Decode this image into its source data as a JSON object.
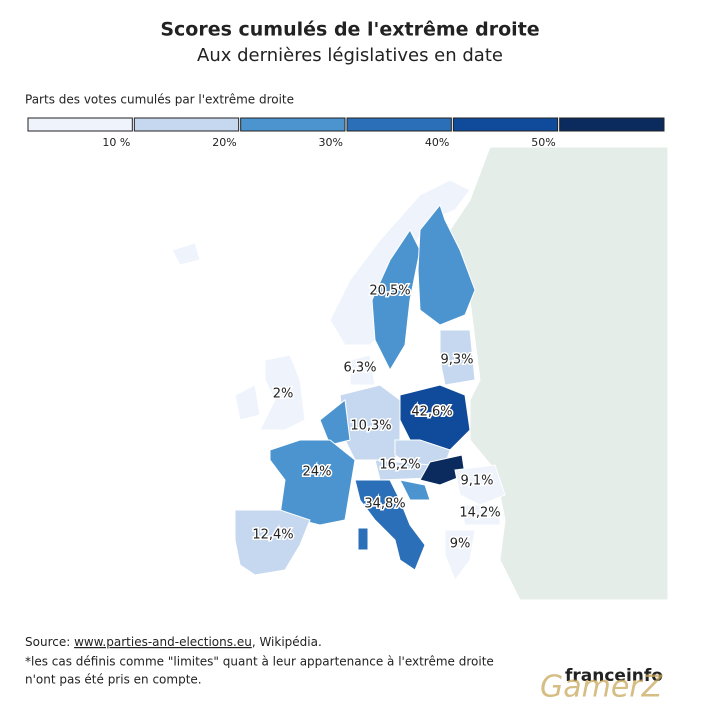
{
  "header": {
    "title": "Scores cumulés de l'extrême droite",
    "subtitle": "Aux dernières législatives en date"
  },
  "legend": {
    "title": "Parts des votes cumulés par l'extrême droite",
    "colors": [
      "#eef3fc",
      "#c5d8ef",
      "#4b94cf",
      "#2a6fb8",
      "#0f4a9b",
      "#0b2a5e"
    ],
    "ticks": [
      "10 %",
      "20%",
      "30%",
      "40%",
      "50%"
    ]
  },
  "map": {
    "labels": [
      "20,5%",
      "6,3%",
      "9,3%",
      "2%",
      "42,6%",
      "10,3%",
      "24%",
      "16,2%",
      "9,1%",
      "34,8%",
      "14,2%",
      "12,4%",
      "9%"
    ]
  },
  "footer": {
    "source_prefix": "Source:",
    "source_link": "www.parties-and-elections.eu",
    "source_suffix": ", Wikipédia.",
    "note_line1": "*les cas définis comme \"limites\" quant à leur appartenance à l'extrême droite",
    "note_line2": "n'ont pas été pris en compte.",
    "brand": "franceinfo",
    "watermark": "GamerZ"
  }
}
